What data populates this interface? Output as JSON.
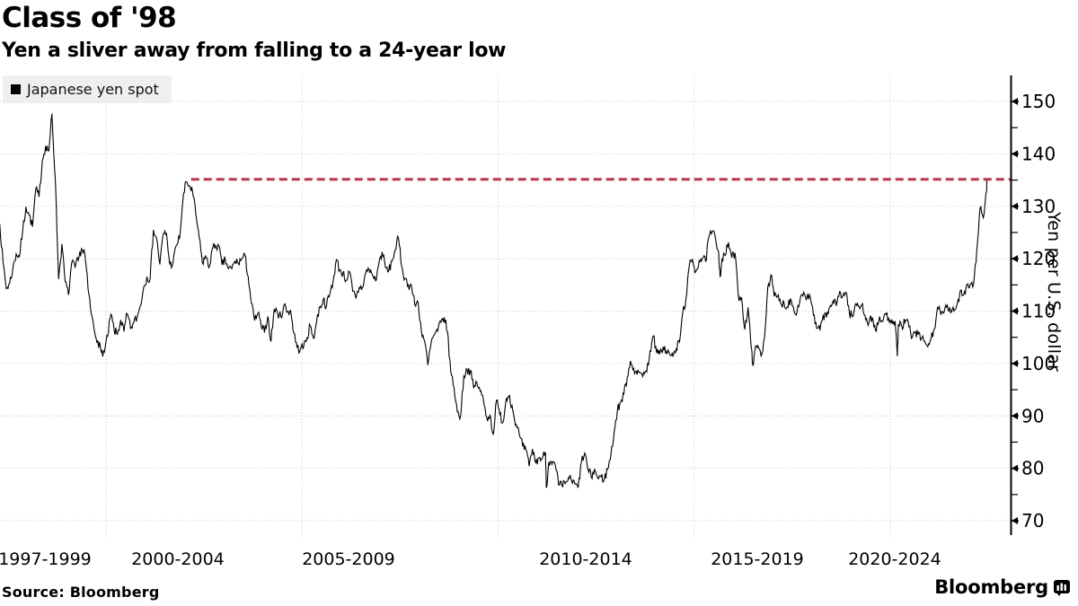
{
  "header": {
    "title": "Class of '98",
    "subtitle": "Yen a sliver away from falling to a 24-year low"
  },
  "legend": {
    "label": "Japanese yen spot",
    "marker_color": "#000000"
  },
  "footer": {
    "source": "Source: Bloomberg",
    "brand": "Bloomberg"
  },
  "chart_data": {
    "type": "line",
    "title": "Class of '98",
    "subtitle": "Yen a sliver away from falling to a 24-year low",
    "series_name": "Japanese yen spot",
    "ylabel": "Yen per U.S. dollar",
    "line_color": "#000000",
    "grid": true,
    "legend_position": "top-left",
    "y_ticks": [
      70,
      80,
      90,
      100,
      110,
      120,
      130,
      140,
      150
    ],
    "ylim": [
      68,
      155
    ],
    "xlim_years": [
      1997.3,
      2022.7
    ],
    "x_gridline_years": [
      2000,
      2005,
      2010,
      2015,
      2020
    ],
    "x_tick_labels": [
      "1997-1999",
      "2000-2004",
      "2005-2009",
      "2010-2014",
      "2015-2019",
      "2020-2024"
    ],
    "reference_line": {
      "value": 135.15,
      "start_year": 2002.17,
      "color": "#c8304b",
      "style": "dashed"
    },
    "series": {
      "start_year_decimal": 1997.292,
      "step_years": 0.08333,
      "values": [
        126.6,
        119.3,
        114.3,
        115.3,
        118.1,
        120.9,
        120.4,
        125.4,
        129.9,
        128.3,
        126.1,
        133.3,
        131.8,
        138.7,
        141.5,
        140.6,
        146.8,
        135.0,
        116.1,
        122.8,
        115.6,
        113.1,
        119.2,
        118.4,
        119.7,
        121.9,
        121.0,
        114.3,
        109.5,
        106.0,
        104.4,
        102.2,
        102.2,
        105.2,
        109.4,
        106.3,
        105.6,
        108.3,
        106.1,
        109.5,
        106.7,
        107.8,
        108.8,
        111.0,
        114.4,
        116.6,
        116.1,
        125.5,
        123.8,
        118.9,
        124.7,
        124.8,
        118.9,
        119.2,
        122.5,
        123.9,
        131.0,
        134.7,
        133.9,
        132.7,
        128.5,
        124.0,
        119.2,
        120.5,
        118.3,
        121.7,
        122.5,
        122.4,
        118.8,
        119.8,
        118.1,
        118.1,
        119.5,
        119.2,
        119.9,
        120.6,
        116.7,
        111.4,
        108.2,
        109.6,
        107.1,
        105.9,
        109.0,
        104.2,
        110.4,
        109.6,
        108.9,
        111.2,
        109.9,
        110.1,
        105.8,
        103.0,
        102.7,
        103.3,
        104.9,
        107.2,
        104.8,
        108.2,
        110.9,
        112.2,
        111.0,
        113.3,
        115.7,
        119.8,
        117.9,
        117.2,
        115.9,
        117.5,
        113.8,
        112.4,
        114.5,
        114.5,
        117.4,
        118.0,
        117.0,
        115.8,
        119.0,
        121.3,
        118.4,
        117.6,
        119.5,
        121.7,
        123.9,
        118.5,
        116.2,
        115.0,
        114.8,
        111.2,
        111.7,
        106.3,
        104.3,
        99.7,
        103.9,
        105.5,
        106.2,
        107.9,
        108.8,
        106.1,
        98.4,
        95.5,
        90.8,
        89.9,
        97.6,
        98.9,
        98.6,
        95.3,
        96.4,
        94.7,
        93.1,
        89.7,
        90.1,
        86.4,
        93.0,
        90.3,
        88.8,
        93.4,
        94.0,
        91.0,
        88.4,
        86.4,
        84.2,
        83.5,
        80.4,
        83.7,
        81.1,
        82.0,
        81.8,
        83.1,
        81.2,
        80.8,
        80.6,
        76.8,
        76.7,
        77.1,
        78.2,
        77.6,
        77.0,
        76.3,
        81.2,
        82.9,
        79.8,
        78.3,
        79.8,
        78.1,
        78.4,
        77.9,
        79.8,
        82.5,
        86.8,
        91.1,
        92.6,
        94.2,
        97.4,
        100.5,
        99.1,
        97.9,
        98.2,
        98.3,
        98.4,
        102.4,
        105.3,
        102.0,
        101.8,
        103.2,
        102.3,
        101.8,
        101.3,
        102.8,
        104.1,
        109.7,
        112.3,
        118.6,
        119.8,
        117.5,
        119.6,
        120.1,
        119.4,
        124.1,
        125.1,
        123.9,
        121.2,
        119.9,
        120.6,
        123.1,
        120.2,
        121.1,
        112.9,
        112.6,
        106.5,
        110.7,
        102.8,
        102.1,
        103.4,
        101.3,
        104.8,
        114.5,
        116.9,
        112.8,
        112.8,
        111.4,
        111.5,
        110.8,
        112.4,
        110.3,
        110.0,
        112.5,
        113.6,
        112.5,
        112.7,
        109.2,
        106.7,
        106.3,
        109.3,
        108.8,
        110.8,
        111.9,
        111.0,
        113.7,
        112.9,
        113.6,
        109.7,
        108.9,
        111.4,
        110.9,
        111.4,
        108.3,
        107.9,
        108.8,
        106.3,
        108.1,
        108.0,
        109.5,
        108.6,
        108.4,
        108.1,
        107.5,
        107.2,
        107.8,
        107.9,
        104.8,
        105.9,
        105.5,
        104.7,
        104.3,
        103.2,
        104.7,
        106.6,
        110.7,
        109.3,
        109.8,
        111.1,
        109.7,
        110.0,
        111.3,
        114.0,
        113.1,
        115.1,
        115.1,
        115.0,
        121.7,
        129.7,
        127.8,
        133.0
      ],
      "extra_points": [
        [
          1998.62,
          147.5
        ],
        [
          2011.23,
          76.3
        ],
        [
          2015.66,
          116.6
        ],
        [
          2016.49,
          99.9
        ],
        [
          2020.18,
          101.4
        ],
        [
          2022.47,
          135.3
        ]
      ]
    }
  }
}
